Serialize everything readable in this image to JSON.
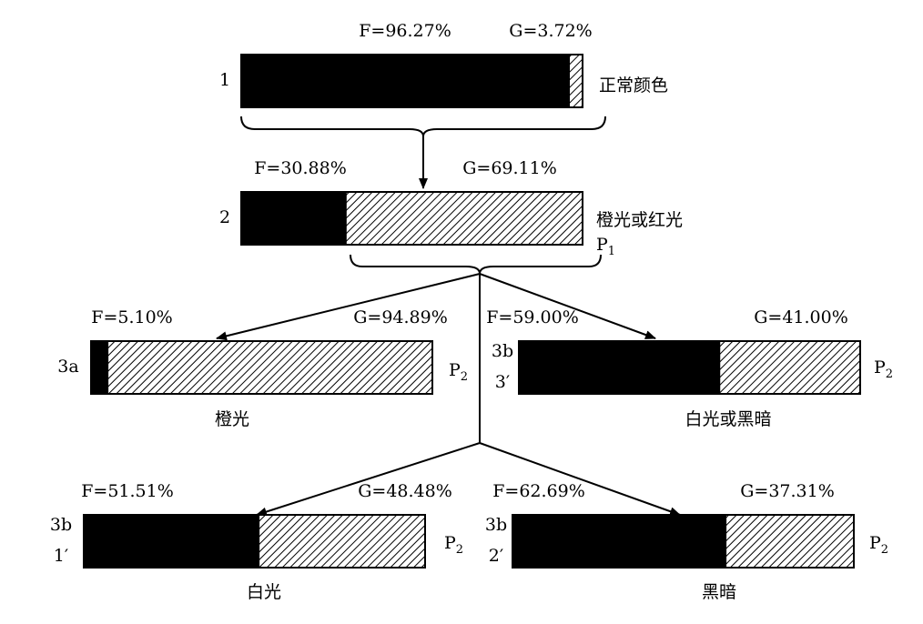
{
  "nodes": [
    {
      "id": [
        "1"
      ],
      "f": {
        "value": 96.27,
        "label": "F=96.27%"
      },
      "g": {
        "value": 3.72,
        "label": "G=3.72%"
      },
      "description": "正常颜色"
    },
    {
      "id": [
        "2"
      ],
      "f": {
        "value": 30.88,
        "label": "F=30.88%"
      },
      "g": {
        "value": 69.11,
        "label": "G=69.11%"
      },
      "description": "橙光或红光",
      "p": [
        "P",
        "1"
      ]
    },
    {
      "id": [
        "3a"
      ],
      "f": {
        "value": 5.1,
        "label": "F=5.10%"
      },
      "g": {
        "value": 94.89,
        "label": "G=94.89%"
      },
      "description": "橙光",
      "p": [
        "P",
        "2"
      ]
    },
    {
      "id": [
        "3b",
        "3′"
      ],
      "f": {
        "value": 59.0,
        "label": "F=59.00%"
      },
      "g": {
        "value": 41.0,
        "label": "G=41.00%"
      },
      "description": "白光或黑暗",
      "p": [
        "P",
        "2"
      ]
    },
    {
      "id": [
        "3b",
        "1′"
      ],
      "f": {
        "value": 51.51,
        "label": "F=51.51%"
      },
      "g": {
        "value": 48.48,
        "label": "G=48.48%"
      },
      "description": "白光",
      "p": [
        "P",
        "2"
      ]
    },
    {
      "id": [
        "3b",
        "2′"
      ],
      "f": {
        "value": 62.69,
        "label": "F=62.69%"
      },
      "g": {
        "value": 37.31,
        "label": "G=37.31%"
      },
      "description": "黑暗",
      "p": [
        "P",
        "2"
      ]
    }
  ]
}
